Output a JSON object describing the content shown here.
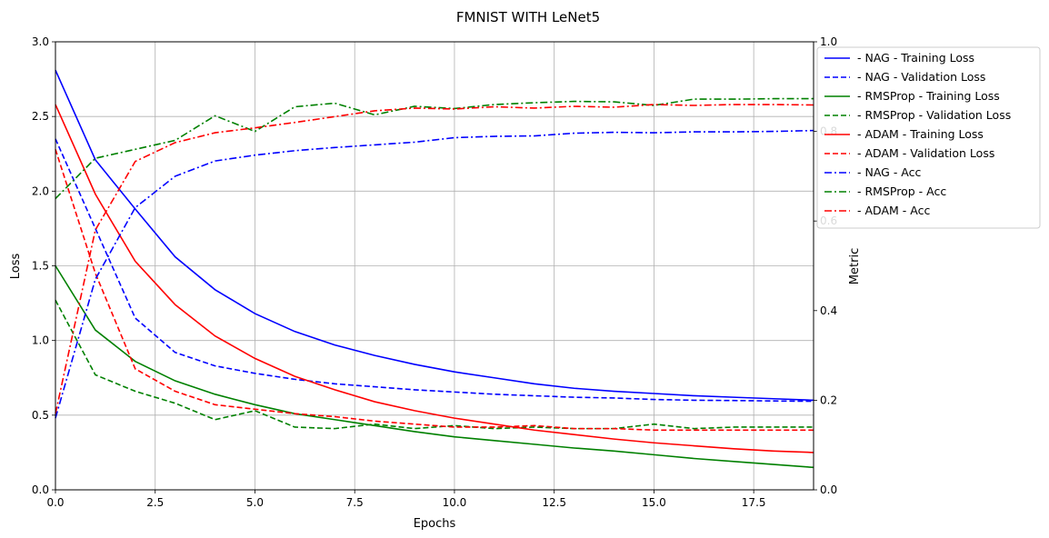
{
  "chart_data": {
    "type": "line",
    "title": "FMNIST WITH LeNet5",
    "xlabel": "Epochs",
    "ylabel": "Loss",
    "y2label": "Metric",
    "x": [
      0,
      1,
      2,
      3,
      4,
      5,
      6,
      7,
      8,
      9,
      10,
      11,
      12,
      13,
      14,
      15,
      16,
      17,
      18,
      19
    ],
    "xlim": [
      0,
      19
    ],
    "ylim": [
      0,
      3.0
    ],
    "y2lim": [
      0,
      1.0
    ],
    "xticks": [
      "0.0",
      "2.5",
      "5.0",
      "7.5",
      "10.0",
      "12.5",
      "15.0",
      "17.5"
    ],
    "xtick_values": [
      0,
      2.5,
      5,
      7.5,
      10,
      12.5,
      15,
      17.5
    ],
    "yticks": [
      "0.0",
      "0.5",
      "1.0",
      "1.5",
      "2.0",
      "2.5",
      "3.0"
    ],
    "ytick_values": [
      0,
      0.5,
      1.0,
      1.5,
      2.0,
      2.5,
      3.0
    ],
    "y2ticks": [
      "0.0",
      "0.2",
      "0.4",
      "0.6",
      "0.8",
      "1.0"
    ],
    "y2tick_values": [
      0,
      0.2,
      0.4,
      0.6,
      0.8,
      1.0
    ],
    "grid": true,
    "legend_position": "right, outside plot",
    "series": [
      {
        "name": " - NAG - Training Loss",
        "axis": "left",
        "color": "#0000ff",
        "style": "solid",
        "values": [
          2.81,
          2.21,
          1.88,
          1.56,
          1.34,
          1.18,
          1.06,
          0.97,
          0.9,
          0.84,
          0.79,
          0.75,
          0.71,
          0.68,
          0.66,
          0.645,
          0.63,
          0.62,
          0.61,
          0.6
        ]
      },
      {
        "name": " - NAG - Validation Loss",
        "axis": "left",
        "color": "#0000ff",
        "style": "dashed",
        "values": [
          2.35,
          1.75,
          1.15,
          0.92,
          0.83,
          0.78,
          0.74,
          0.71,
          0.69,
          0.67,
          0.655,
          0.64,
          0.63,
          0.62,
          0.615,
          0.605,
          0.6,
          0.598,
          0.595,
          0.593
        ]
      },
      {
        "name": " - RMSProp - Training Loss",
        "axis": "left",
        "color": "#008000",
        "style": "solid",
        "values": [
          1.5,
          1.07,
          0.86,
          0.73,
          0.64,
          0.57,
          0.51,
          0.47,
          0.43,
          0.39,
          0.355,
          0.33,
          0.305,
          0.28,
          0.26,
          0.235,
          0.21,
          0.19,
          0.17,
          0.15
        ]
      },
      {
        "name": " - RMSProp - Validation Loss",
        "axis": "left",
        "color": "#008000",
        "style": "dashed",
        "values": [
          1.27,
          0.77,
          0.66,
          0.58,
          0.47,
          0.53,
          0.42,
          0.41,
          0.44,
          0.41,
          0.43,
          0.41,
          0.42,
          0.41,
          0.41,
          0.44,
          0.41,
          0.42,
          0.42,
          0.42
        ]
      },
      {
        "name": " - ADAM - Training Loss",
        "axis": "left",
        "color": "#ff0000",
        "style": "solid",
        "values": [
          2.58,
          1.98,
          1.53,
          1.24,
          1.03,
          0.88,
          0.76,
          0.67,
          0.59,
          0.53,
          0.48,
          0.44,
          0.4,
          0.37,
          0.34,
          0.315,
          0.295,
          0.275,
          0.26,
          0.25
        ]
      },
      {
        "name": " - ADAM - Validation Loss",
        "axis": "left",
        "color": "#ff0000",
        "style": "dashed",
        "values": [
          2.28,
          1.45,
          0.81,
          0.66,
          0.57,
          0.54,
          0.51,
          0.49,
          0.46,
          0.44,
          0.42,
          0.42,
          0.43,
          0.41,
          0.41,
          0.4,
          0.4,
          0.4,
          0.4,
          0.4
        ]
      },
      {
        "name": " - NAG - Acc",
        "axis": "right",
        "color": "#0000ff",
        "style": "dashdot",
        "values": [
          0.16,
          0.47,
          0.63,
          0.7,
          0.734,
          0.747,
          0.757,
          0.764,
          0.77,
          0.776,
          0.786,
          0.789,
          0.79,
          0.796,
          0.798,
          0.797,
          0.799,
          0.799,
          0.8,
          0.802
        ]
      },
      {
        "name": " - RMSProp - Acc",
        "axis": "right",
        "color": "#008000",
        "style": "dashdot",
        "values": [
          0.65,
          0.74,
          0.76,
          0.78,
          0.835,
          0.8,
          0.855,
          0.863,
          0.837,
          0.856,
          0.851,
          0.86,
          0.864,
          0.867,
          0.866,
          0.858,
          0.872,
          0.872,
          0.873,
          0.873
        ]
      },
      {
        "name": " - ADAM - Acc",
        "axis": "right",
        "color": "#ff0000",
        "style": "dashdot",
        "values": [
          0.17,
          0.58,
          0.733,
          0.775,
          0.797,
          0.808,
          0.82,
          0.833,
          0.846,
          0.852,
          0.85,
          0.855,
          0.852,
          0.856,
          0.854,
          0.86,
          0.858,
          0.86,
          0.86,
          0.859
        ]
      }
    ]
  }
}
